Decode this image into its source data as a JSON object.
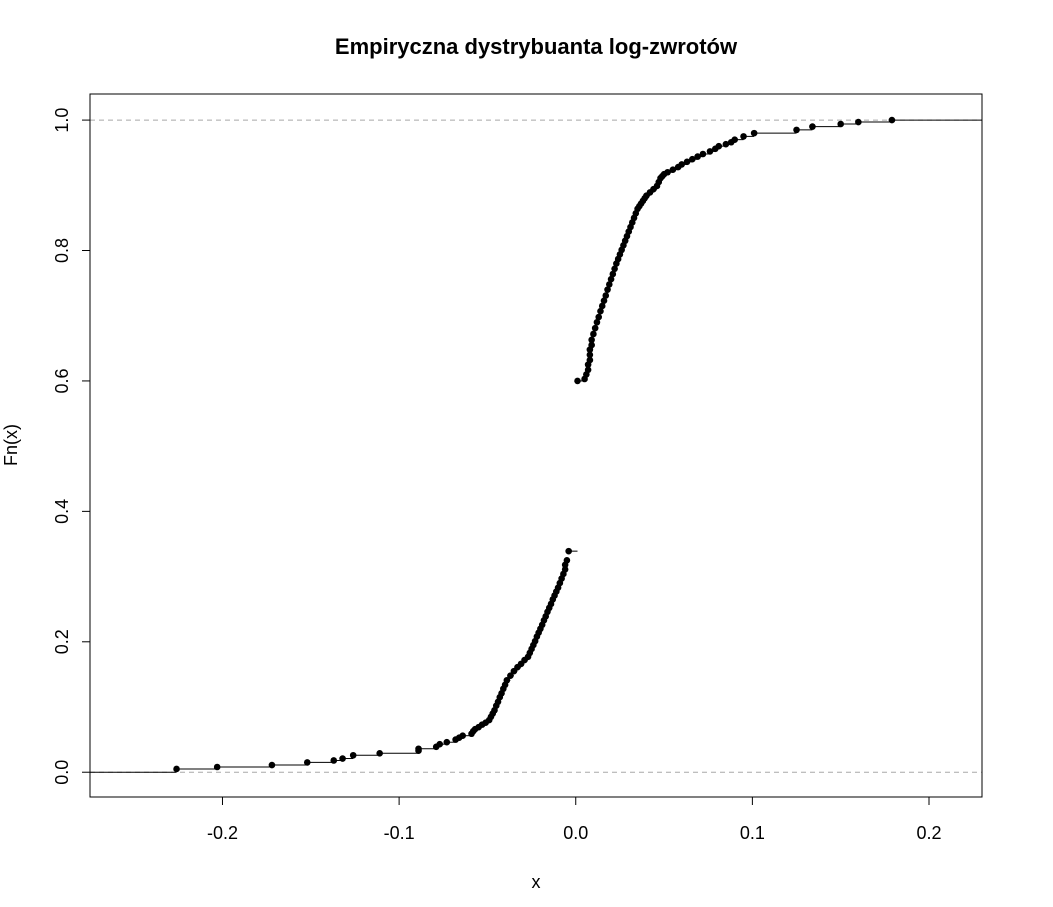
{
  "chart_data": {
    "type": "scatter",
    "title": "Empiryczna dystrybuanta log-zwrotów",
    "xlabel": "x",
    "ylabel": "Fn(x)",
    "xlim": [
      -0.275,
      0.23
    ],
    "ylim": [
      -0.038,
      1.04
    ],
    "x_ticks": [
      -0.2,
      -0.1,
      0.0,
      0.1,
      0.2
    ],
    "x_tick_labels": [
      "-0.2",
      "-0.1",
      "0.0",
      "0.1",
      "0.2"
    ],
    "y_ticks": [
      0.0,
      0.2,
      0.4,
      0.6,
      0.8,
      1.0
    ],
    "y_tick_labels": [
      "0.0",
      "0.2",
      "0.4",
      "0.6",
      "0.8",
      "1.0"
    ],
    "reference_lines_y": [
      0.0,
      1.0
    ],
    "grid": false,
    "step_function": true,
    "series": [
      {
        "x": [
          -0.226,
          -0.203,
          -0.172,
          -0.152,
          -0.137,
          -0.132,
          -0.126,
          -0.111,
          -0.089,
          -0.089,
          -0.079,
          -0.077,
          -0.073,
          -0.068,
          -0.066,
          -0.064,
          -0.059,
          -0.058,
          -0.057,
          -0.055,
          -0.053,
          -0.051,
          -0.049,
          -0.048,
          -0.047,
          -0.046,
          -0.045,
          -0.044,
          -0.043,
          -0.042,
          -0.041,
          -0.04,
          -0.039,
          -0.037,
          -0.035,
          -0.033,
          -0.031,
          -0.029,
          -0.027,
          -0.026,
          -0.025,
          -0.024,
          -0.023,
          -0.022,
          -0.021,
          -0.02,
          -0.019,
          -0.018,
          -0.017,
          -0.016,
          -0.015,
          -0.014,
          -0.013,
          -0.012,
          -0.011,
          -0.01,
          -0.009,
          -0.008,
          -0.007,
          -0.006,
          -0.006,
          -0.005,
          -0.004
        ],
        "y": [
          0.005,
          0.008,
          0.011,
          0.015,
          0.018,
          0.021,
          0.026,
          0.029,
          0.033,
          0.036,
          0.039,
          0.043,
          0.046,
          0.05,
          0.053,
          0.056,
          0.059,
          0.063,
          0.066,
          0.069,
          0.073,
          0.076,
          0.08,
          0.085,
          0.09,
          0.095,
          0.102,
          0.108,
          0.115,
          0.121,
          0.128,
          0.134,
          0.141,
          0.148,
          0.155,
          0.161,
          0.166,
          0.172,
          0.177,
          0.183,
          0.189,
          0.195,
          0.201,
          0.208,
          0.214,
          0.22,
          0.226,
          0.233,
          0.239,
          0.246,
          0.252,
          0.258,
          0.265,
          0.271,
          0.277,
          0.283,
          0.29,
          0.297,
          0.304,
          0.311,
          0.318,
          0.325,
          0.339
        ]
      },
      {
        "x": [
          0.001,
          0.005,
          0.006,
          0.007,
          0.007,
          0.008,
          0.008,
          0.008,
          0.009,
          0.009,
          0.01,
          0.011,
          0.012,
          0.013,
          0.014,
          0.015,
          0.016,
          0.017,
          0.018,
          0.019,
          0.02,
          0.021,
          0.022,
          0.023,
          0.024,
          0.025,
          0.026,
          0.027,
          0.028,
          0.029,
          0.03,
          0.031,
          0.032,
          0.033,
          0.034,
          0.035,
          0.036,
          0.037,
          0.038,
          0.039,
          0.04,
          0.042,
          0.044,
          0.046,
          0.047,
          0.048,
          0.049,
          0.05,
          0.052,
          0.055,
          0.058,
          0.06,
          0.063,
          0.066,
          0.069,
          0.072,
          0.076,
          0.079,
          0.081,
          0.085,
          0.088,
          0.09,
          0.095,
          0.101,
          0.125,
          0.134,
          0.15,
          0.16,
          0.179
        ],
        "y": [
          0.6,
          0.603,
          0.61,
          0.617,
          0.625,
          0.632,
          0.64,
          0.648,
          0.655,
          0.663,
          0.672,
          0.681,
          0.69,
          0.698,
          0.707,
          0.715,
          0.723,
          0.731,
          0.74,
          0.748,
          0.756,
          0.764,
          0.772,
          0.78,
          0.787,
          0.794,
          0.801,
          0.808,
          0.815,
          0.822,
          0.829,
          0.836,
          0.843,
          0.85,
          0.857,
          0.864,
          0.868,
          0.872,
          0.876,
          0.88,
          0.884,
          0.889,
          0.894,
          0.899,
          0.905,
          0.911,
          0.914,
          0.917,
          0.92,
          0.924,
          0.928,
          0.932,
          0.936,
          0.94,
          0.944,
          0.948,
          0.952,
          0.956,
          0.96,
          0.963,
          0.966,
          0.97,
          0.975,
          0.98,
          0.985,
          0.99,
          0.994,
          0.997,
          1.0
        ]
      }
    ]
  }
}
